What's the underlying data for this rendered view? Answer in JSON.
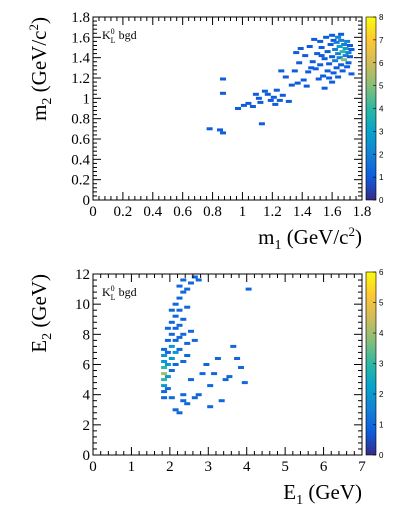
{
  "chart_data": [
    {
      "type": "heatmap",
      "annotation": {
        "particle": "K",
        "sub": "L",
        "sup": "0",
        "suffix": " bgd"
      },
      "xlabel": {
        "main": "m",
        "sub": "1",
        "unit_pre": " (GeV/c",
        "unit_sup": "2",
        "unit_post": ")"
      },
      "ylabel": {
        "main": "m",
        "sub": "2",
        "unit_pre": " (GeV/c",
        "unit_sup": "2",
        "unit_post": ")"
      },
      "xlim": [
        0,
        1.8
      ],
      "ylim": [
        0,
        1.8
      ],
      "xticks": [
        0,
        0.2,
        0.4,
        0.6,
        0.8,
        1,
        1.2,
        1.4,
        1.6,
        1.8
      ],
      "xtick_labels": [
        "0",
        "0.2",
        "0.4",
        "0.6",
        "0.8",
        "1",
        "1.2",
        "1.4",
        "1.6",
        "1.8"
      ],
      "yticks": [
        0,
        0.2,
        0.4,
        0.6,
        0.8,
        1,
        1.2,
        1.4,
        1.6,
        1.8
      ],
      "ytick_labels": [
        "0",
        "0.2",
        "0.4",
        "0.6",
        "0.8",
        "1",
        "1.2",
        "1.4",
        "1.6",
        "1.8"
      ],
      "zlim": [
        0,
        8
      ],
      "colorbar_ticks": [
        "0",
        "1",
        "2",
        "3",
        "4",
        "5",
        "6",
        "7",
        "8"
      ],
      "points": [
        [
          0.78,
          0.7,
          1
        ],
        [
          0.85,
          0.69,
          1
        ],
        [
          0.87,
          0.66,
          1
        ],
        [
          0.87,
          1.05,
          1
        ],
        [
          0.87,
          1.19,
          1
        ],
        [
          0.97,
          0.9,
          1
        ],
        [
          1.01,
          0.93,
          1
        ],
        [
          1.04,
          0.95,
          1
        ],
        [
          1.07,
          0.92,
          1
        ],
        [
          1.09,
          1.04,
          1
        ],
        [
          1.11,
          1.0,
          1
        ],
        [
          1.12,
          0.96,
          1
        ],
        [
          1.13,
          0.75,
          1
        ],
        [
          1.15,
          1.07,
          1
        ],
        [
          1.17,
          1.04,
          1
        ],
        [
          1.19,
          0.98,
          1
        ],
        [
          1.21,
          1.01,
          1
        ],
        [
          1.22,
          0.94,
          1
        ],
        [
          1.23,
          1.08,
          1
        ],
        [
          1.25,
          0.98,
          1
        ],
        [
          1.27,
          1.03,
          1
        ],
        [
          1.29,
          1.21,
          1
        ],
        [
          1.31,
          0.97,
          1
        ],
        [
          1.33,
          1.13,
          1
        ],
        [
          1.35,
          1.27,
          1
        ],
        [
          1.37,
          1.15,
          1
        ],
        [
          1.38,
          1.35,
          1
        ],
        [
          1.39,
          1.49,
          1
        ],
        [
          1.41,
          1.18,
          1
        ],
        [
          1.42,
          1.42,
          1
        ],
        [
          1.44,
          1.26,
          1
        ],
        [
          1.45,
          1.51,
          1
        ],
        [
          1.47,
          1.36,
          1
        ],
        [
          1.48,
          1.58,
          1
        ],
        [
          1.49,
          1.29,
          1
        ],
        [
          1.5,
          1.44,
          1
        ],
        [
          1.51,
          1.19,
          1
        ],
        [
          1.52,
          1.33,
          1
        ],
        [
          1.53,
          1.5,
          1
        ],
        [
          1.54,
          1.22,
          1
        ],
        [
          1.55,
          1.39,
          1
        ],
        [
          1.56,
          1.6,
          1
        ],
        [
          1.57,
          1.27,
          1
        ],
        [
          1.57,
          1.46,
          1
        ],
        [
          1.58,
          1.34,
          1
        ],
        [
          1.59,
          1.53,
          1
        ],
        [
          1.6,
          1.16,
          1
        ],
        [
          1.6,
          1.41,
          1
        ],
        [
          1.61,
          1.57,
          1
        ],
        [
          1.61,
          1.25,
          1
        ],
        [
          1.62,
          1.48,
          2
        ],
        [
          1.62,
          1.37,
          2
        ],
        [
          1.63,
          1.55,
          2
        ],
        [
          1.63,
          1.3,
          1
        ],
        [
          1.64,
          1.44,
          2
        ],
        [
          1.64,
          1.21,
          1
        ],
        [
          1.65,
          1.51,
          3
        ],
        [
          1.65,
          1.4,
          2
        ],
        [
          1.66,
          1.33,
          1
        ],
        [
          1.66,
          1.57,
          2
        ],
        [
          1.67,
          1.46,
          4
        ],
        [
          1.67,
          1.27,
          1
        ],
        [
          1.68,
          1.53,
          2
        ],
        [
          1.68,
          1.38,
          5
        ],
        [
          1.69,
          1.42,
          2
        ],
        [
          1.69,
          1.49,
          3
        ],
        [
          1.7,
          1.56,
          2
        ],
        [
          1.7,
          1.31,
          1
        ],
        [
          1.71,
          1.45,
          2
        ],
        [
          1.71,
          1.35,
          1
        ],
        [
          1.72,
          1.52,
          1
        ],
        [
          1.72,
          1.41,
          1
        ],
        [
          1.73,
          1.48,
          1
        ],
        [
          1.73,
          1.24,
          1
        ],
        [
          1.58,
          1.2,
          1
        ],
        [
          1.55,
          1.1,
          1
        ],
        [
          1.64,
          1.6,
          2
        ],
        [
          1.6,
          1.62,
          1
        ],
        [
          1.66,
          1.63,
          1
        ],
        [
          1.52,
          1.56,
          1
        ],
        [
          1.46,
          1.3,
          1
        ],
        [
          1.43,
          1.12,
          1
        ],
        [
          1.36,
          1.45,
          1
        ],
        [
          1.26,
          1.27,
          1
        ],
        [
          1.53,
          1.42,
          1
        ]
      ]
    },
    {
      "type": "heatmap",
      "annotation": {
        "particle": "K",
        "sub": "L",
        "sup": "0",
        "suffix": " bgd"
      },
      "xlabel": {
        "main": "E",
        "sub": "1",
        "unit_pre": " (GeV)",
        "unit_sup": "",
        "unit_post": ""
      },
      "ylabel": {
        "main": "E",
        "sub": "2",
        "unit_pre": " (GeV)",
        "unit_sup": "",
        "unit_post": ""
      },
      "xlim": [
        0,
        7
      ],
      "ylim": [
        0,
        12
      ],
      "xticks": [
        0,
        1,
        2,
        3,
        4,
        5,
        6,
        7
      ],
      "xtick_labels": [
        "0",
        "1",
        "2",
        "3",
        "4",
        "5",
        "6",
        "7"
      ],
      "yticks": [
        0,
        2,
        4,
        6,
        8,
        10,
        12
      ],
      "ytick_labels": [
        "0",
        "2",
        "4",
        "6",
        "8",
        "10",
        "12"
      ],
      "zlim": [
        0,
        6
      ],
      "colorbar_ticks": [
        "0",
        "1",
        "2",
        "3",
        "4",
        "5",
        "6"
      ],
      "points": [
        [
          1.85,
          4.2,
          1
        ],
        [
          1.85,
          4.6,
          2
        ],
        [
          1.85,
          5.0,
          3
        ],
        [
          1.85,
          5.4,
          4
        ],
        [
          1.85,
          5.8,
          3
        ],
        [
          1.85,
          6.2,
          2
        ],
        [
          1.85,
          6.6,
          2
        ],
        [
          1.85,
          7.0,
          1
        ],
        [
          1.95,
          4.4,
          1
        ],
        [
          1.95,
          5.2,
          2
        ],
        [
          1.95,
          6.0,
          2
        ],
        [
          1.95,
          6.8,
          1
        ],
        [
          1.95,
          7.6,
          1
        ],
        [
          2.05,
          5.6,
          1
        ],
        [
          2.05,
          6.4,
          2
        ],
        [
          2.05,
          7.2,
          2
        ],
        [
          2.05,
          8.0,
          1
        ],
        [
          2.05,
          8.8,
          1
        ],
        [
          2.05,
          3.8,
          1
        ],
        [
          2.15,
          6.0,
          1
        ],
        [
          2.15,
          6.8,
          2
        ],
        [
          2.15,
          7.6,
          1
        ],
        [
          2.15,
          8.4,
          1
        ],
        [
          2.15,
          9.2,
          1
        ],
        [
          2.15,
          10.0,
          1
        ],
        [
          2.25,
          7.0,
          1
        ],
        [
          2.25,
          7.8,
          1
        ],
        [
          2.25,
          8.6,
          1
        ],
        [
          2.25,
          9.6,
          1
        ],
        [
          2.25,
          10.4,
          1
        ],
        [
          2.25,
          11.2,
          1
        ],
        [
          2.35,
          6.2,
          1
        ],
        [
          2.35,
          8.0,
          1
        ],
        [
          2.35,
          9.0,
          1
        ],
        [
          2.35,
          10.8,
          1
        ],
        [
          2.35,
          11.6,
          1
        ],
        [
          2.45,
          7.4,
          1
        ],
        [
          2.45,
          9.8,
          1
        ],
        [
          2.45,
          11.0,
          1
        ],
        [
          2.55,
          11.4,
          1
        ],
        [
          2.65,
          11.8,
          1
        ],
        [
          2.75,
          11.6,
          1
        ],
        [
          2.55,
          8.2,
          1
        ],
        [
          2.55,
          5.0,
          1
        ],
        [
          2.35,
          4.0,
          1
        ],
        [
          2.45,
          3.4,
          1
        ],
        [
          2.15,
          3.0,
          1
        ],
        [
          2.25,
          2.8,
          1
        ],
        [
          2.65,
          3.8,
          1
        ],
        [
          2.85,
          5.4,
          1
        ],
        [
          2.95,
          6.0,
          1
        ],
        [
          3.05,
          4.6,
          1
        ],
        [
          3.15,
          5.4,
          1
        ],
        [
          3.35,
          3.6,
          1
        ],
        [
          3.55,
          5.2,
          1
        ],
        [
          3.65,
          7.2,
          1
        ],
        [
          3.75,
          6.4,
          1
        ],
        [
          3.85,
          5.8,
          1
        ],
        [
          3.95,
          4.8,
          1
        ],
        [
          4.05,
          11.0,
          1
        ],
        [
          3.25,
          6.4,
          1
        ],
        [
          3.45,
          5.0,
          1
        ],
        [
          2.75,
          4.0,
          1
        ],
        [
          3.05,
          3.2,
          1
        ],
        [
          2.35,
          3.6,
          1
        ],
        [
          2.05,
          9.6,
          1
        ],
        [
          1.95,
          8.4,
          1
        ],
        [
          1.85,
          3.8,
          1
        ],
        [
          2.45,
          6.6,
          1
        ],
        [
          2.65,
          7.6,
          1
        ]
      ]
    }
  ]
}
